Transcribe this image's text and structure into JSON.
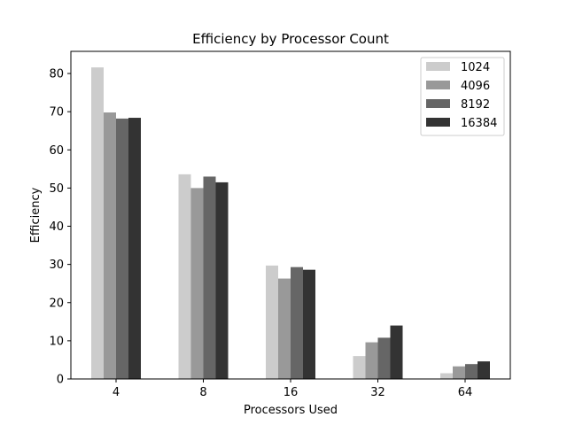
{
  "chart_data": {
    "type": "bar",
    "title": "Efficiency by Processor Count",
    "xlabel": "Processors Used",
    "ylabel": "Efficiency",
    "categories": [
      "4",
      "8",
      "16",
      "32",
      "64"
    ],
    "series": [
      {
        "name": "1024",
        "color": "#cccccc",
        "values": [
          81.6,
          53.6,
          29.7,
          6.0,
          1.5
        ]
      },
      {
        "name": "4096",
        "color": "#999999",
        "values": [
          69.8,
          50.0,
          26.3,
          9.6,
          3.3
        ]
      },
      {
        "name": "8192",
        "color": "#666666",
        "values": [
          68.2,
          53.0,
          29.3,
          10.8,
          3.9
        ]
      },
      {
        "name": "16384",
        "color": "#333333",
        "values": [
          68.4,
          51.5,
          28.6,
          14.0,
          4.6
        ]
      }
    ],
    "ylim": [
      0,
      85.8
    ],
    "yticks": [
      0,
      10,
      20,
      30,
      40,
      50,
      60,
      70,
      80
    ],
    "grid": false,
    "legend_position": "top-right"
  }
}
